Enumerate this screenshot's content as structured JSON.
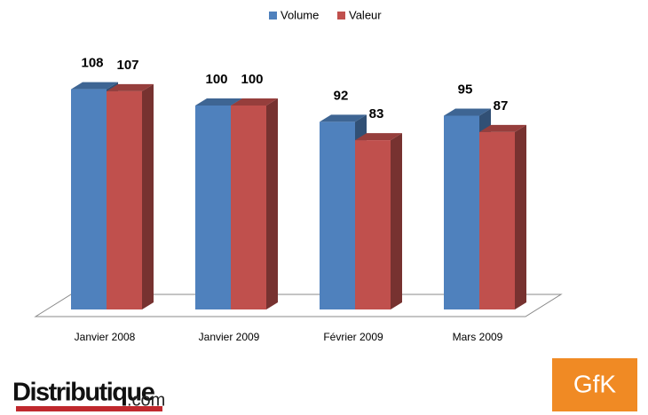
{
  "chart_data": {
    "type": "bar3d",
    "categories": [
      "Janvier 2008",
      "Janvier 2009",
      "Février 2009",
      "Mars 2009"
    ],
    "series": [
      {
        "name": "Volume",
        "color": "#4f81bd",
        "values": [
          108,
          100,
          92,
          95
        ]
      },
      {
        "name": "Valeur",
        "color": "#c0504d",
        "values": [
          107,
          100,
          83,
          87
        ]
      }
    ],
    "ylim": [
      0,
      120
    ],
    "legend": "top"
  },
  "branding": {
    "distributique": "Distributique",
    "domain": ".com",
    "gfk": "GfK"
  }
}
